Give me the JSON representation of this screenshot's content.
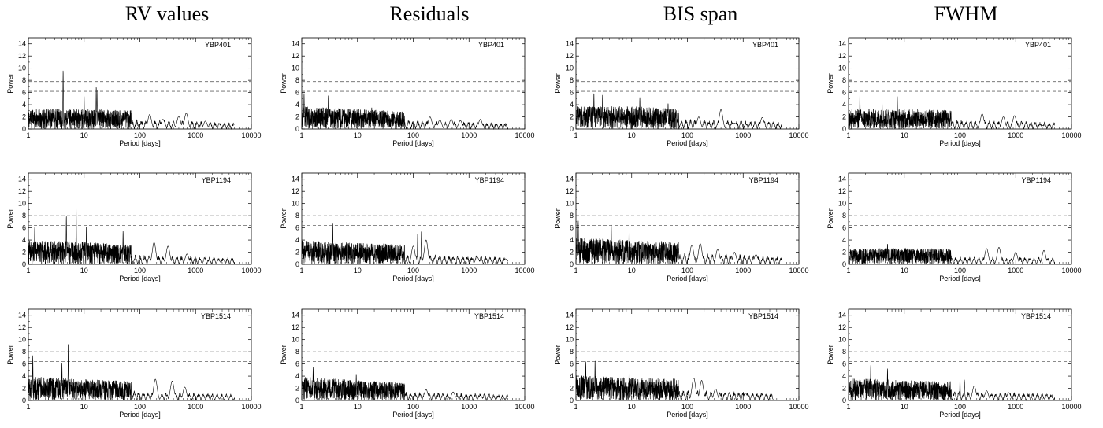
{
  "column_titles": [
    "RV values",
    "Residuals",
    "BIS span",
    "FWHM"
  ],
  "star_labels": [
    "YBP401",
    "YBP1194",
    "YBP1514"
  ],
  "chart_data": {
    "type": "line",
    "layout": "3 rows (stars) x 4 columns (quantities) of periodograms",
    "xlabel": "Period [days]",
    "ylabel": "Power",
    "xscale": "log",
    "xlim": [
      1,
      10000
    ],
    "ylim": [
      0,
      15
    ],
    "xticks": [
      1,
      10,
      100,
      1000,
      10000
    ],
    "yticks": [
      0,
      2,
      4,
      6,
      8,
      10,
      12,
      14
    ],
    "grid": false,
    "line_color": "#000000",
    "threshold_style": "dashed",
    "panels": [
      {
        "row": 0,
        "col": 0,
        "star": "YBP401",
        "quantity": "RV values",
        "thresholds": [
          7.8,
          6.2
        ],
        "x_end": 5000,
        "noise": [
          3.0,
          3.0,
          2.8,
          2.5,
          1.6,
          1.1
        ],
        "peaks": [
          {
            "x": 4.2,
            "y": 9.7
          },
          {
            "x": 16.5,
            "y": 7.0
          },
          {
            "x": 17.5,
            "y": 6.4
          },
          {
            "x": 10,
            "y": 5.5
          }
        ],
        "bumps": [
          {
            "x": 150,
            "y": 2.4
          },
          {
            "x": 260,
            "y": 1.6
          },
          {
            "x": 500,
            "y": 2.1
          },
          {
            "x": 680,
            "y": 2.6
          },
          {
            "x": 1500,
            "y": 1.3
          }
        ]
      },
      {
        "row": 0,
        "col": 1,
        "star": "YBP401",
        "quantity": "Residuals",
        "thresholds": [
          7.8,
          6.2
        ],
        "x_end": 5000,
        "noise": [
          3.4,
          3.0,
          2.6,
          2.2,
          1.6,
          1.2
        ],
        "peaks": [
          {
            "x": 1.1,
            "y": 5.9
          },
          {
            "x": 3.0,
            "y": 5.5
          },
          {
            "x": 18,
            "y": 3.6
          }
        ],
        "bumps": [
          {
            "x": 200,
            "y": 2.0
          },
          {
            "x": 300,
            "y": 1.5
          },
          {
            "x": 480,
            "y": 1.6
          },
          {
            "x": 700,
            "y": 1.4
          },
          {
            "x": 1600,
            "y": 1.6
          }
        ]
      },
      {
        "row": 0,
        "col": 2,
        "star": "YBP401",
        "quantity": "BIS span",
        "thresholds": [
          7.8,
          6.2
        ],
        "x_end": 5000,
        "noise": [
          3.4,
          3.4,
          3.0,
          2.6,
          2.0,
          1.3
        ],
        "peaks": [
          {
            "x": 2.1,
            "y": 6.0
          },
          {
            "x": 3.0,
            "y": 5.6
          },
          {
            "x": 14,
            "y": 5.2
          },
          {
            "x": 45,
            "y": 4.3
          }
        ],
        "bumps": [
          {
            "x": 160,
            "y": 2.0
          },
          {
            "x": 400,
            "y": 3.2
          },
          {
            "x": 700,
            "y": 1.0
          },
          {
            "x": 2200,
            "y": 1.9
          }
        ]
      },
      {
        "row": 0,
        "col": 3,
        "star": "YBP401",
        "quantity": "FWHM",
        "thresholds": [
          7.8,
          6.2
        ],
        "x_end": 5000,
        "noise": [
          3.0,
          3.0,
          2.8,
          2.4,
          1.8,
          1.4
        ],
        "peaks": [
          {
            "x": 1.6,
            "y": 6.3
          },
          {
            "x": 7.5,
            "y": 5.4
          },
          {
            "x": 4,
            "y": 4.6
          }
        ],
        "bumps": [
          {
            "x": 250,
            "y": 2.5
          },
          {
            "x": 600,
            "y": 2.0
          },
          {
            "x": 950,
            "y": 2.2
          },
          {
            "x": 3000,
            "y": 0.6
          }
        ]
      },
      {
        "row": 1,
        "col": 0,
        "star": "YBP1194",
        "quantity": "RV values",
        "thresholds": [
          8.0,
          6.4
        ],
        "x_end": 5000,
        "noise": [
          3.6,
          3.4,
          2.8,
          2.4,
          1.8,
          1.2
        ],
        "peaks": [
          {
            "x": 7.2,
            "y": 9.3
          },
          {
            "x": 4.8,
            "y": 8.0
          },
          {
            "x": 1.3,
            "y": 6.2
          },
          {
            "x": 11,
            "y": 6.3
          },
          {
            "x": 50,
            "y": 5.5
          }
        ],
        "bumps": [
          {
            "x": 180,
            "y": 3.6
          },
          {
            "x": 320,
            "y": 3.0
          },
          {
            "x": 700,
            "y": 1.7
          },
          {
            "x": 2600,
            "y": 0.6
          }
        ]
      },
      {
        "row": 1,
        "col": 1,
        "star": "YBP1194",
        "quantity": "Residuals",
        "thresholds": [
          8.0,
          6.4
        ],
        "x_end": 5000,
        "noise": [
          3.6,
          3.2,
          3.0,
          2.6,
          2.0,
          1.2
        ],
        "peaks": [
          {
            "x": 3.6,
            "y": 6.7
          },
          {
            "x": 120,
            "y": 5.2
          },
          {
            "x": 140,
            "y": 5.4
          }
        ],
        "bumps": [
          {
            "x": 100,
            "y": 3.0
          },
          {
            "x": 170,
            "y": 4.0
          },
          {
            "x": 1400,
            "y": 1.2
          },
          {
            "x": 4500,
            "y": 0.9
          }
        ]
      },
      {
        "row": 1,
        "col": 2,
        "star": "YBP1194",
        "quantity": "BIS span",
        "thresholds": [
          8.0,
          6.4
        ],
        "x_end": 5000,
        "noise": [
          4.0,
          3.6,
          3.4,
          3.0,
          2.0,
          1.2
        ],
        "peaks": [
          {
            "x": 1.1,
            "y": 7.2
          },
          {
            "x": 4.3,
            "y": 6.5
          },
          {
            "x": 9,
            "y": 6.4
          }
        ],
        "bumps": [
          {
            "x": 120,
            "y": 3.2
          },
          {
            "x": 170,
            "y": 3.4
          },
          {
            "x": 350,
            "y": 2.5
          },
          {
            "x": 700,
            "y": 2.0
          },
          {
            "x": 1700,
            "y": 1.6
          }
        ]
      },
      {
        "row": 1,
        "col": 3,
        "star": "YBP1194",
        "quantity": "FWHM",
        "thresholds": [
          8.0,
          6.4
        ],
        "x_end": 5000,
        "noise": [
          2.4,
          2.4,
          2.3,
          2.2,
          2.0,
          1.5
        ],
        "peaks": [
          {
            "x": 5,
            "y": 3.4
          }
        ],
        "bumps": [
          {
            "x": 300,
            "y": 2.6
          },
          {
            "x": 500,
            "y": 2.8
          },
          {
            "x": 1000,
            "y": 2.0
          },
          {
            "x": 3200,
            "y": 2.3
          }
        ]
      },
      {
        "row": 2,
        "col": 0,
        "star": "YBP1514",
        "quantity": "RV values",
        "thresholds": [
          8.0,
          6.4
        ],
        "x_end": 5000,
        "noise": [
          3.6,
          3.2,
          2.8,
          2.4,
          1.8,
          1.2
        ],
        "peaks": [
          {
            "x": 5.2,
            "y": 9.5
          },
          {
            "x": 1.2,
            "y": 7.4
          },
          {
            "x": 4.0,
            "y": 6.2
          }
        ],
        "bumps": [
          {
            "x": 190,
            "y": 3.5
          },
          {
            "x": 380,
            "y": 3.2
          },
          {
            "x": 640,
            "y": 2.2
          },
          {
            "x": 2500,
            "y": 0.4
          }
        ]
      },
      {
        "row": 2,
        "col": 1,
        "star": "YBP1514",
        "quantity": "Residuals",
        "thresholds": [
          8.0,
          6.4
        ],
        "x_end": 5000,
        "noise": [
          3.6,
          3.0,
          2.6,
          2.2,
          1.6,
          1.2
        ],
        "peaks": [
          {
            "x": 1.6,
            "y": 5.5
          },
          {
            "x": 9.5,
            "y": 4.3
          }
        ],
        "bumps": [
          {
            "x": 170,
            "y": 1.8
          },
          {
            "x": 520,
            "y": 1.4
          },
          {
            "x": 1600,
            "y": 0.8
          }
        ]
      },
      {
        "row": 2,
        "col": 2,
        "star": "YBP1514",
        "quantity": "BIS span",
        "thresholds": [
          8.0,
          6.4
        ],
        "x_end": 3500,
        "noise": [
          3.8,
          3.4,
          3.2,
          2.6,
          1.8,
          1.1
        ],
        "peaks": [
          {
            "x": 1.5,
            "y": 6.4
          },
          {
            "x": 2.2,
            "y": 6.6
          },
          {
            "x": 9,
            "y": 5.4
          }
        ],
        "bumps": [
          {
            "x": 130,
            "y": 3.7
          },
          {
            "x": 180,
            "y": 3.3
          },
          {
            "x": 320,
            "y": 1.9
          },
          {
            "x": 1100,
            "y": 1.2
          }
        ]
      },
      {
        "row": 2,
        "col": 3,
        "star": "YBP1514",
        "quantity": "FWHM",
        "thresholds": [
          8.0,
          6.4
        ],
        "x_end": 5000,
        "noise": [
          3.4,
          3.0,
          2.8,
          2.4,
          1.8,
          1.0
        ],
        "peaks": [
          {
            "x": 2.5,
            "y": 5.8
          },
          {
            "x": 5,
            "y": 5.3
          },
          {
            "x": 100,
            "y": 3.9
          },
          {
            "x": 120,
            "y": 3.6
          }
        ],
        "bumps": [
          {
            "x": 180,
            "y": 2.4
          },
          {
            "x": 300,
            "y": 1.6
          },
          {
            "x": 750,
            "y": 1.3
          },
          {
            "x": 3500,
            "y": 0.4
          }
        ]
      }
    ]
  }
}
